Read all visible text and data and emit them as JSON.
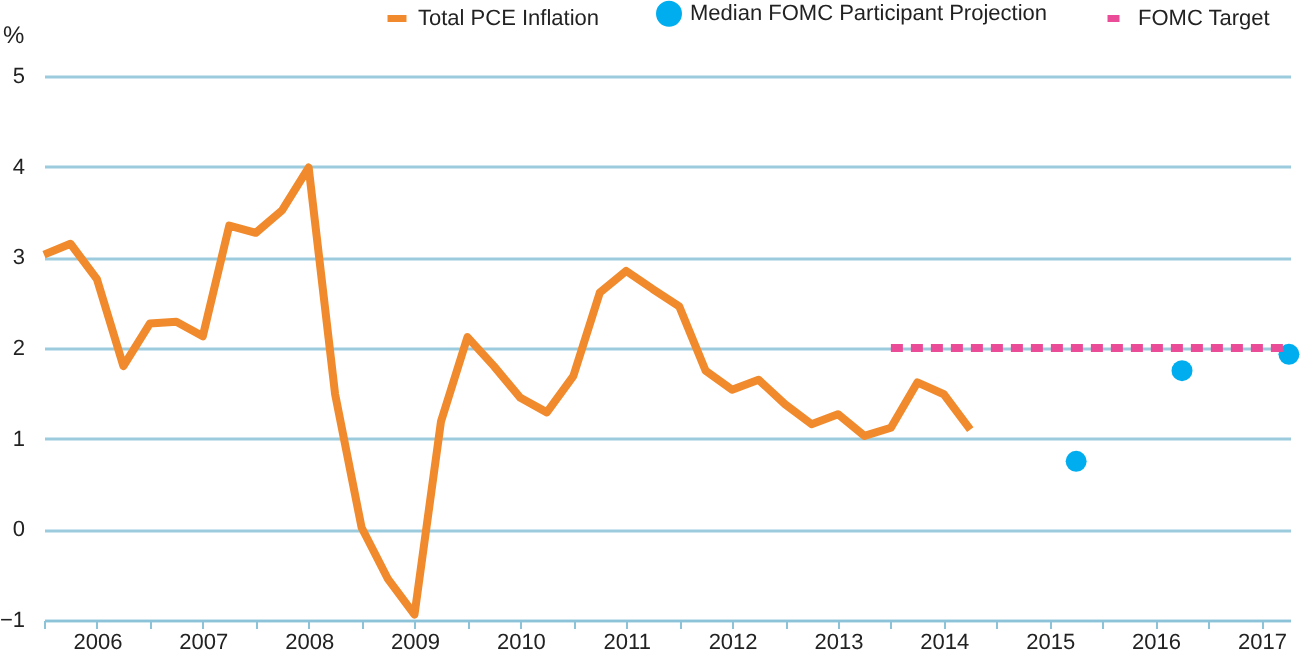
{
  "chart_data": {
    "type": "line",
    "ylabel": "%",
    "xlim": [
      2006,
      2017.77
    ],
    "xticks": [
      {
        "value": 2006,
        "label": null
      },
      {
        "value": 2006.5,
        "label": "2006"
      },
      {
        "value": 2007,
        "label": null
      },
      {
        "value": 2007.5,
        "label": "2007"
      },
      {
        "value": 2008,
        "label": null
      },
      {
        "value": 2008.5,
        "label": "2008"
      },
      {
        "value": 2009,
        "label": null
      },
      {
        "value": 2009.5,
        "label": "2009"
      },
      {
        "value": 2010,
        "label": null
      },
      {
        "value": 2010.5,
        "label": "2010"
      },
      {
        "value": 2011,
        "label": null
      },
      {
        "value": 2011.5,
        "label": "2011"
      },
      {
        "value": 2012,
        "label": null
      },
      {
        "value": 2012.5,
        "label": "2012"
      },
      {
        "value": 2013,
        "label": null
      },
      {
        "value": 2013.5,
        "label": "2013"
      },
      {
        "value": 2014,
        "label": null
      },
      {
        "value": 2014.5,
        "label": "2014"
      },
      {
        "value": 2015,
        "label": null
      },
      {
        "value": 2015.5,
        "label": "2015"
      },
      {
        "value": 2016,
        "label": null
      },
      {
        "value": 2016.5,
        "label": "2016"
      },
      {
        "value": 2017,
        "label": null
      },
      {
        "value": 2017.5,
        "label": "2017"
      }
    ],
    "ylim": [
      -1,
      5
    ],
    "yticks": [
      -1,
      0,
      1,
      2,
      3,
      4,
      5
    ],
    "grid": "y",
    "legend": "top",
    "series": [
      {
        "name": "Total PCE Inflation",
        "color": "#f08a2c",
        "line_style": "solid",
        "x": [
          2006,
          2006.25,
          2006.5,
          2006.75,
          2007,
          2007.25,
          2007.5,
          2007.75,
          2008,
          2008.25,
          2008.5,
          2008.75,
          2009,
          2009.25,
          2009.5,
          2009.75,
          2010,
          2010.25,
          2010.5,
          2010.75,
          2011,
          2011.25,
          2011.5,
          2011.75,
          2012,
          2012.25,
          2012.5,
          2012.75,
          2013,
          2013.25,
          2013.5,
          2013.75,
          2014,
          2014.25,
          2014.5,
          2014.75
        ],
        "values": [
          3.03,
          3.15,
          2.76,
          1.8,
          2.27,
          2.29,
          2.13,
          3.35,
          3.27,
          3.52,
          3.99,
          1.49,
          0.02,
          -0.55,
          -0.94,
          1.19,
          2.12,
          1.8,
          1.45,
          1.29,
          1.69,
          2.61,
          2.85,
          2.65,
          2.46,
          1.75,
          1.54,
          1.65,
          1.38,
          1.16,
          1.27,
          1.03,
          1.12,
          1.62,
          1.49,
          1.1
        ]
      },
      {
        "name": "Median FOMC Participant Projection",
        "type": "scatter",
        "marker": "circle",
        "color": "#00aeef",
        "x": [
          2015.75,
          2016.75,
          2017.76
        ],
        "values": [
          0.75,
          1.75,
          1.93
        ]
      },
      {
        "name": "FOMC Target",
        "color": "#ea4c97",
        "line_style": "dashed",
        "x": [
          2014,
          2017.77
        ],
        "values": [
          2,
          2
        ]
      }
    ]
  }
}
